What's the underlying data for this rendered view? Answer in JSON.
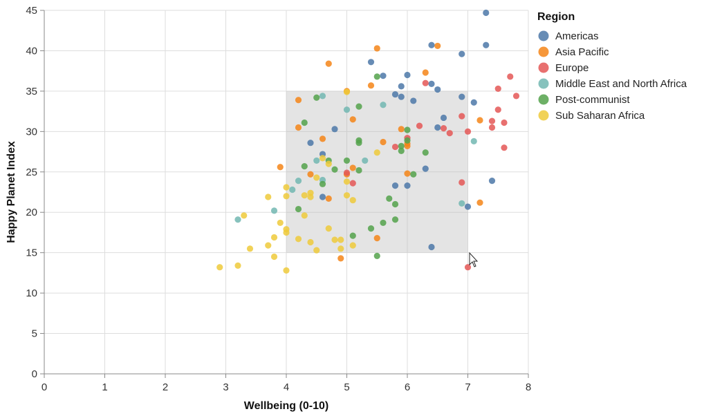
{
  "chart_data": {
    "type": "scatter",
    "xlabel": "Wellbeing (0-10)",
    "ylabel": "Happy Planet Index",
    "xlim": [
      0,
      8
    ],
    "ylim": [
      0,
      45
    ],
    "x_ticks": [
      "0",
      "1",
      "2",
      "3",
      "4",
      "5",
      "6",
      "7",
      "8"
    ],
    "y_ticks": [
      "0",
      "5",
      "10",
      "15",
      "20",
      "25",
      "30",
      "35",
      "40",
      "45"
    ],
    "grid": true,
    "legend": {
      "title": "Region",
      "position": "right"
    },
    "brush_selection": {
      "x": [
        4.0,
        7.0
      ],
      "y": [
        15.0,
        35.0
      ]
    },
    "series": [
      {
        "name": "Americas",
        "color": "#4c78a8",
        "points": [
          [
            7.3,
            44.7
          ],
          [
            6.4,
            40.7
          ],
          [
            7.3,
            40.7
          ],
          [
            6.9,
            39.6
          ],
          [
            5.4,
            38.6
          ],
          [
            5.6,
            36.9
          ],
          [
            6.0,
            37.0
          ],
          [
            5.9,
            35.6
          ],
          [
            6.4,
            35.9
          ],
          [
            6.5,
            35.2
          ],
          [
            5.8,
            34.6
          ],
          [
            6.9,
            34.3
          ],
          [
            5.9,
            34.3
          ],
          [
            6.1,
            33.8
          ],
          [
            7.1,
            33.6
          ],
          [
            6.6,
            31.7
          ],
          [
            6.5,
            30.5
          ],
          [
            4.8,
            30.3
          ],
          [
            4.4,
            28.6
          ],
          [
            4.6,
            27.2
          ],
          [
            6.3,
            25.4
          ],
          [
            7.4,
            23.9
          ],
          [
            5.8,
            23.3
          ],
          [
            6.0,
            23.3
          ],
          [
            4.6,
            21.9
          ],
          [
            7.0,
            20.7
          ],
          [
            6.4,
            15.7
          ]
        ]
      },
      {
        "name": "Asia Pacific",
        "color": "#f58518",
        "points": [
          [
            4.7,
            38.4
          ],
          [
            5.5,
            40.3
          ],
          [
            6.5,
            40.6
          ],
          [
            6.3,
            37.3
          ],
          [
            5.4,
            35.7
          ],
          [
            5.0,
            35.0
          ],
          [
            4.2,
            33.9
          ],
          [
            5.1,
            31.5
          ],
          [
            7.2,
            31.4
          ],
          [
            4.2,
            30.5
          ],
          [
            5.9,
            30.3
          ],
          [
            4.6,
            29.1
          ],
          [
            5.6,
            28.7
          ],
          [
            6.0,
            28.5
          ],
          [
            6.0,
            28.2
          ],
          [
            5.1,
            25.5
          ],
          [
            3.9,
            25.6
          ],
          [
            6.0,
            24.8
          ],
          [
            4.4,
            24.7
          ],
          [
            5.0,
            24.7
          ],
          [
            4.7,
            21.7
          ],
          [
            7.2,
            21.2
          ],
          [
            4.9,
            14.3
          ],
          [
            5.5,
            16.8
          ]
        ]
      },
      {
        "name": "Europe",
        "color": "#e45756",
        "points": [
          [
            7.7,
            36.8
          ],
          [
            7.8,
            34.4
          ],
          [
            7.5,
            35.3
          ],
          [
            6.3,
            36.0
          ],
          [
            7.5,
            32.7
          ],
          [
            6.9,
            31.9
          ],
          [
            7.4,
            31.3
          ],
          [
            7.6,
            31.1
          ],
          [
            6.2,
            30.7
          ],
          [
            7.4,
            30.5
          ],
          [
            6.6,
            30.4
          ],
          [
            7.0,
            30.0
          ],
          [
            6.7,
            29.8
          ],
          [
            6.0,
            29.2
          ],
          [
            5.8,
            28.1
          ],
          [
            7.6,
            28.0
          ],
          [
            5.0,
            24.9
          ],
          [
            5.1,
            23.6
          ],
          [
            6.9,
            23.7
          ],
          [
            7.0,
            13.2
          ]
        ]
      },
      {
        "name": "Middle East and North Africa",
        "color": "#72b7b2",
        "points": [
          [
            4.6,
            34.4
          ],
          [
            5.0,
            32.7
          ],
          [
            5.6,
            33.3
          ],
          [
            7.1,
            28.8
          ],
          [
            4.5,
            26.4
          ],
          [
            5.3,
            26.4
          ],
          [
            4.6,
            24.0
          ],
          [
            4.2,
            23.9
          ],
          [
            4.1,
            22.8
          ],
          [
            6.9,
            21.1
          ],
          [
            3.8,
            20.2
          ],
          [
            3.2,
            19.1
          ]
        ]
      },
      {
        "name": "Post-communist",
        "color": "#54a24b",
        "points": [
          [
            5.5,
            36.8
          ],
          [
            4.5,
            34.2
          ],
          [
            5.2,
            33.1
          ],
          [
            4.3,
            31.1
          ],
          [
            6.0,
            30.2
          ],
          [
            5.2,
            28.9
          ],
          [
            5.2,
            28.6
          ],
          [
            6.0,
            28.9
          ],
          [
            5.9,
            28.2
          ],
          [
            5.9,
            27.6
          ],
          [
            6.3,
            27.4
          ],
          [
            4.7,
            26.4
          ],
          [
            5.0,
            26.4
          ],
          [
            4.3,
            25.7
          ],
          [
            4.8,
            25.3
          ],
          [
            5.2,
            25.2
          ],
          [
            6.1,
            24.7
          ],
          [
            4.6,
            23.5
          ],
          [
            5.7,
            21.7
          ],
          [
            5.8,
            21.0
          ],
          [
            4.2,
            20.4
          ],
          [
            5.8,
            19.1
          ],
          [
            5.6,
            18.7
          ],
          [
            5.4,
            18.0
          ],
          [
            5.1,
            17.1
          ],
          [
            5.5,
            14.6
          ]
        ]
      },
      {
        "name": "Sub Saharan Africa",
        "color": "#eeca3b",
        "points": [
          [
            5.0,
            34.9
          ],
          [
            5.5,
            27.4
          ],
          [
            4.6,
            26.7
          ],
          [
            4.7,
            26.0
          ],
          [
            4.5,
            24.3
          ],
          [
            5.0,
            23.8
          ],
          [
            4.0,
            23.1
          ],
          [
            4.4,
            22.4
          ],
          [
            4.3,
            22.1
          ],
          [
            5.0,
            22.1
          ],
          [
            4.0,
            22.0
          ],
          [
            3.7,
            21.9
          ],
          [
            4.4,
            21.9
          ],
          [
            5.1,
            21.5
          ],
          [
            4.3,
            19.6
          ],
          [
            3.3,
            19.6
          ],
          [
            3.9,
            18.7
          ],
          [
            4.7,
            18.0
          ],
          [
            4.0,
            17.9
          ],
          [
            4.0,
            17.5
          ],
          [
            3.8,
            16.9
          ],
          [
            4.2,
            16.7
          ],
          [
            4.8,
            16.6
          ],
          [
            4.4,
            16.3
          ],
          [
            4.9,
            16.6
          ],
          [
            3.7,
            15.9
          ],
          [
            5.1,
            15.9
          ],
          [
            3.4,
            15.5
          ],
          [
            4.9,
            15.5
          ],
          [
            4.5,
            15.3
          ],
          [
            3.8,
            14.5
          ],
          [
            3.2,
            13.4
          ],
          [
            2.9,
            13.2
          ],
          [
            4.0,
            12.8
          ]
        ]
      }
    ]
  }
}
